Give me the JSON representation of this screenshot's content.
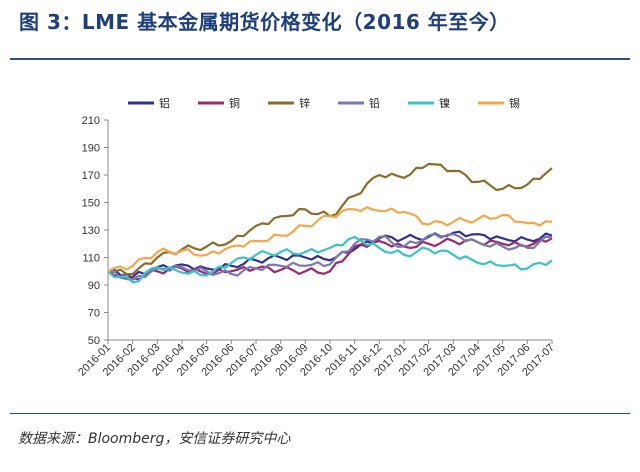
{
  "header": {
    "title": "图 3：LME 基本金属期货价格变化（2016 年至今）"
  },
  "footer": {
    "source": "数据来源：Bloomberg，安信证券研究中心"
  },
  "chart_data": {
    "type": "line",
    "x": [
      "2016-01",
      "2016-02",
      "2016-03",
      "2016-04",
      "2016-05",
      "2016-06",
      "2016-07",
      "2016-08",
      "2016-09",
      "2016-10",
      "2016-11",
      "2016-12",
      "2017-01",
      "2017-02",
      "2017-03",
      "2017-04",
      "2017-05",
      "2017-06",
      "2017-07"
    ],
    "ylim": [
      50,
      210
    ],
    "yticks": [
      50,
      70,
      90,
      110,
      130,
      150,
      170,
      190,
      210
    ],
    "grid": false,
    "legend_position": "top",
    "series": [
      {
        "name": "铝",
        "color": "#2e3192",
        "values": [
          100,
          96,
          103,
          105,
          102,
          104,
          108,
          110,
          110,
          108,
          116,
          124,
          124,
          125,
          128,
          127,
          124,
          123,
          126
        ]
      },
      {
        "name": "铜",
        "color": "#9b2a6a",
        "values": [
          100,
          95,
          100,
          102,
          98,
          100,
          102,
          101,
          100,
          100,
          118,
          122,
          118,
          120,
          122,
          121,
          120,
          118,
          124
        ]
      },
      {
        "name": "锌",
        "color": "#8a6d2b",
        "values": [
          100,
          98,
          110,
          116,
          118,
          122,
          133,
          140,
          145,
          140,
          155,
          170,
          168,
          178,
          173,
          165,
          160,
          163,
          175
        ]
      },
      {
        "name": "铅",
        "color": "#7a78b4",
        "values": [
          100,
          94,
          102,
          103,
          100,
          98,
          102,
          104,
          104,
          105,
          120,
          125,
          118,
          126,
          127,
          121,
          118,
          117,
          125
        ]
      },
      {
        "name": "镍",
        "color": "#39c3c9",
        "values": [
          100,
          92,
          103,
          99,
          97,
          106,
          112,
          114,
          114,
          117,
          125,
          117,
          112,
          116,
          112,
          106,
          104,
          102,
          108
        ]
      },
      {
        "name": "锡",
        "color": "#f6a64a",
        "values": [
          100,
          104,
          114,
          115,
          112,
          118,
          122,
          126,
          133,
          140,
          145,
          144,
          143,
          134,
          136,
          138,
          141,
          135,
          136
        ]
      }
    ]
  }
}
